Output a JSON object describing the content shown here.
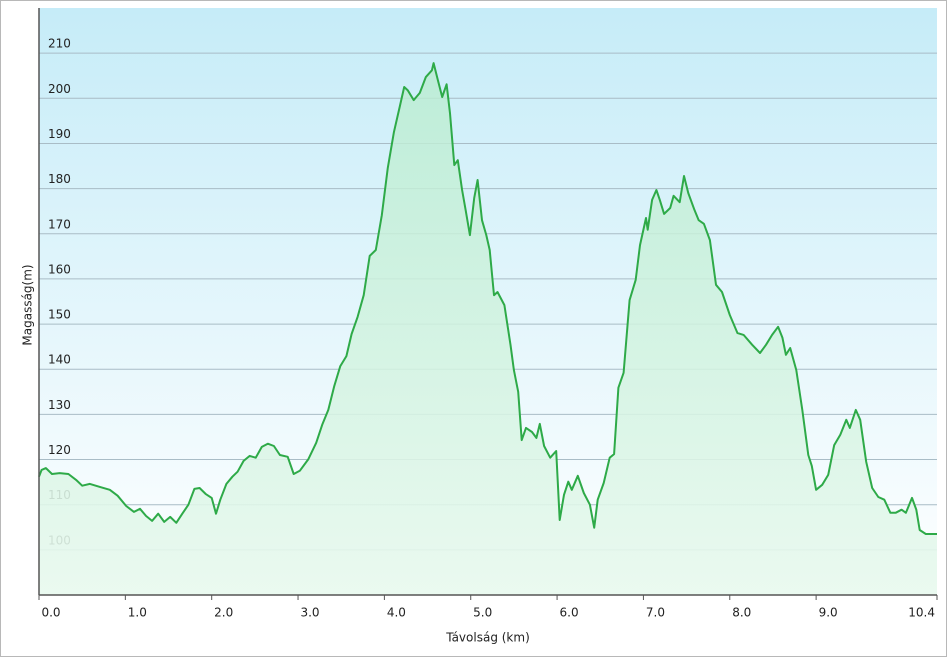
{
  "chart_data": {
    "type": "area",
    "x_label": "Távolság  (km)",
    "y_label": "Magasság(m)",
    "xlim": [
      0,
      10.4
    ],
    "ylim": [
      90,
      220
    ],
    "xticks": [
      {
        "value": 0,
        "label": "0.0"
      },
      {
        "value": 1,
        "label": "1.0"
      },
      {
        "value": 2,
        "label": "2.0"
      },
      {
        "value": 3,
        "label": "3.0"
      },
      {
        "value": 4,
        "label": "4.0"
      },
      {
        "value": 5,
        "label": "5.0"
      },
      {
        "value": 6,
        "label": "6.0"
      },
      {
        "value": 7,
        "label": "7.0"
      },
      {
        "value": 8,
        "label": "8.0"
      },
      {
        "value": 9,
        "label": "9.0"
      },
      10.4
    ],
    "yticks": [
      100,
      110,
      120,
      130,
      140,
      150,
      160,
      170,
      180,
      190,
      200,
      210
    ],
    "grid": true,
    "x": [
      0,
      0.03,
      0.08,
      0.15,
      0.24,
      0.34,
      0.43,
      0.5,
      0.59,
      0.71,
      0.82,
      0.91,
      1.01,
      1.1,
      1.17,
      1.24,
      1.31,
      1.38,
      1.45,
      1.52,
      1.59,
      1.66,
      1.73,
      1.8,
      1.86,
      1.93,
      2.0,
      2.05,
      2.1,
      2.17,
      2.24,
      2.3,
      2.37,
      2.44,
      2.51,
      2.58,
      2.65,
      2.72,
      2.79,
      2.88,
      2.95,
      3.02,
      3.12,
      3.21,
      3.28,
      3.35,
      3.42,
      3.49,
      3.56,
      3.62,
      3.69,
      3.76,
      3.83,
      3.9,
      3.97,
      4.04,
      4.11,
      4.18,
      4.23,
      4.27,
      4.34,
      4.41,
      4.48,
      4.55,
      4.57,
      4.62,
      4.67,
      4.72,
      4.76,
      4.81,
      4.85,
      4.9,
      4.94,
      4.99,
      5.04,
      5.08,
      5.13,
      5.18,
      5.22,
      5.27,
      5.31,
      5.39,
      5.46,
      5.5,
      5.55,
      5.59,
      5.64,
      5.71,
      5.76,
      5.8,
      5.85,
      5.92,
      5.99,
      6.03,
      6.08,
      6.13,
      6.17,
      6.24,
      6.31,
      6.38,
      6.43,
      6.47,
      6.54,
      6.61,
      6.66,
      6.71,
      6.77,
      6.84,
      6.91,
      6.96,
      7.03,
      7.05,
      7.1,
      7.15,
      7.19,
      7.24,
      7.31,
      7.35,
      7.42,
      7.47,
      7.52,
      7.59,
      7.64,
      7.7,
      7.77,
      7.84,
      7.91,
      8.0,
      8.09,
      8.16,
      8.26,
      8.35,
      8.42,
      8.49,
      8.56,
      8.61,
      8.65,
      8.7,
      8.77,
      8.84,
      8.91,
      8.95,
      9.0,
      9.07,
      9.14,
      9.21,
      9.28,
      9.35,
      9.39,
      9.46,
      9.51,
      9.58,
      9.65,
      9.72,
      9.79,
      9.86,
      9.92,
      9.99,
      10.04,
      10.11,
      10.16,
      10.2,
      10.27,
      10.4
    ],
    "series": [
      {
        "color": "#2eaa48",
        "values": [
          116.2,
          117.7,
          118.1,
          116.8,
          117.0,
          116.8,
          115.5,
          114.2,
          114.6,
          113.9,
          113.3,
          112.0,
          109.7,
          108.4,
          109.1,
          107.5,
          106.4,
          108.0,
          106.2,
          107.3,
          106.0,
          108.0,
          110.0,
          113.5,
          113.7,
          112.4,
          111.5,
          108.0,
          111.1,
          114.6,
          116.2,
          117.3,
          119.7,
          120.8,
          120.4,
          122.8,
          123.5,
          123.0,
          121.0,
          120.6,
          116.8,
          117.5,
          120.1,
          123.7,
          127.7,
          131.0,
          136.3,
          140.7,
          142.9,
          147.8,
          151.6,
          156.4,
          165.1,
          166.4,
          174.1,
          184.6,
          192.5,
          198.3,
          202.5,
          201.8,
          199.6,
          201.2,
          204.7,
          206.2,
          207.8,
          204.0,
          200.3,
          203.1,
          196.7,
          185.2,
          186.3,
          179.7,
          175.3,
          169.7,
          177.9,
          181.9,
          173.0,
          169.7,
          166.4,
          156.4,
          157.1,
          154.2,
          145.4,
          139.8,
          135.0,
          124.3,
          127.0,
          126.1,
          124.8,
          127.9,
          123.0,
          120.4,
          121.9,
          106.6,
          112.2,
          115.1,
          113.3,
          116.4,
          112.6,
          110.0,
          104.9,
          111.1,
          114.8,
          120.4,
          121.2,
          135.9,
          139.2,
          155.3,
          159.8,
          167.5,
          173.5,
          170.9,
          177.5,
          179.7,
          177.5,
          174.4,
          175.7,
          178.4,
          177.0,
          182.8,
          179.0,
          175.3,
          173.0,
          172.2,
          168.6,
          158.7,
          157.1,
          152.0,
          148.0,
          147.6,
          145.4,
          143.6,
          145.4,
          147.6,
          149.4,
          147.0,
          143.2,
          144.7,
          139.8,
          131.0,
          121.0,
          118.6,
          113.3,
          114.4,
          116.6,
          123.2,
          125.5,
          128.8,
          127.0,
          131.0,
          128.8,
          119.5,
          113.7,
          111.7,
          111.1,
          108.2,
          108.2,
          108.9,
          108.2,
          111.5,
          108.9,
          104.4,
          103.5,
          103.5
        ]
      }
    ]
  }
}
